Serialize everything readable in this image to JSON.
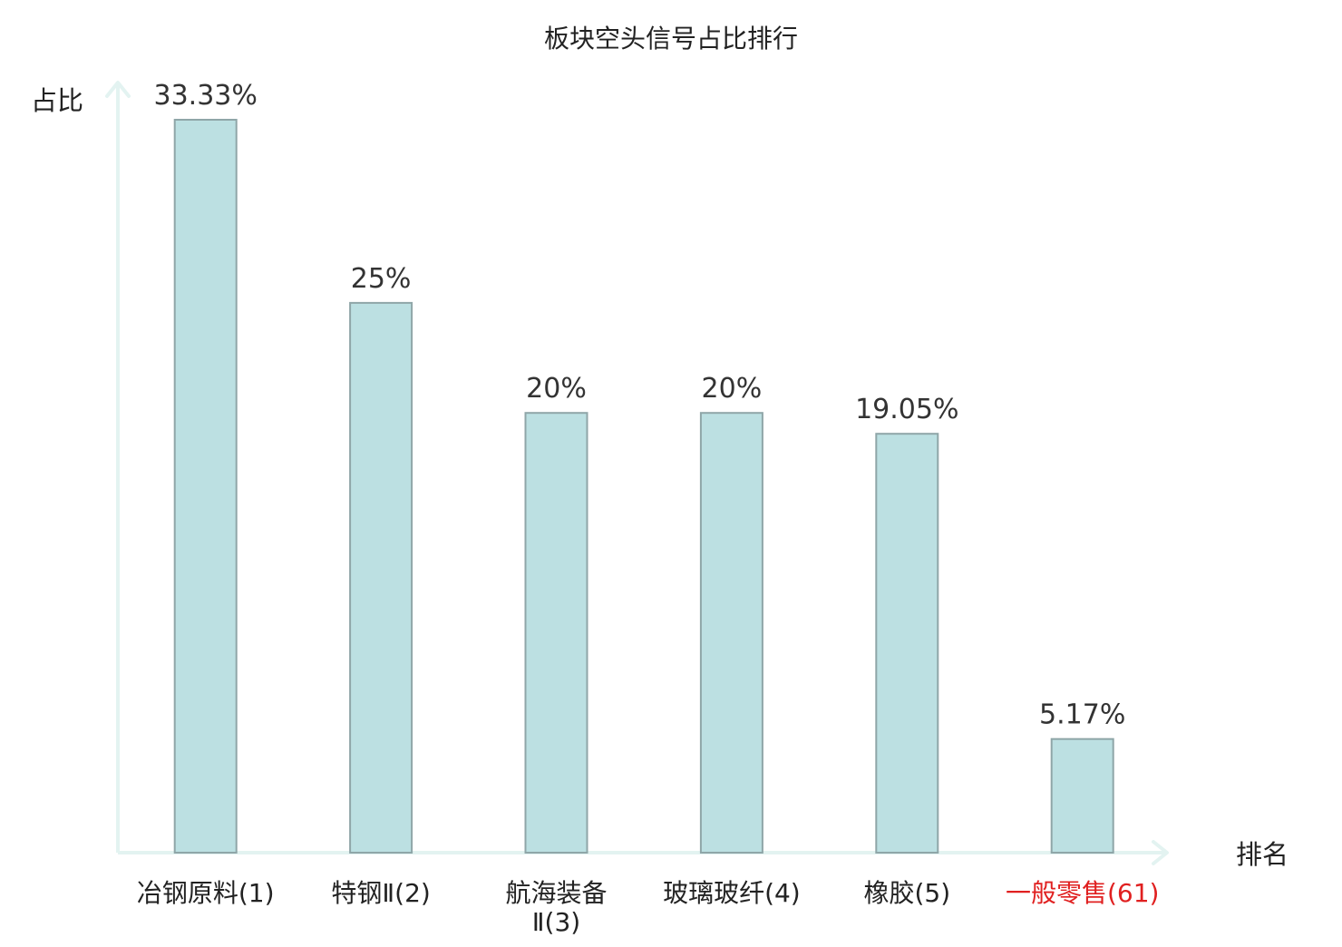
{
  "chart_data": {
    "type": "bar",
    "title": "板块空头信号占比排行",
    "ylabel": "占比",
    "xlabel": "排名",
    "ylim": [
      0,
      35
    ],
    "grid": false,
    "categories": [
      {
        "name": "冶钢原料",
        "rank": "(1)",
        "lines": [
          "冶钢原料(1)"
        ],
        "highlight": false
      },
      {
        "name": "特钢Ⅱ",
        "rank": "(2)",
        "lines": [
          "特钢Ⅱ(2)"
        ],
        "highlight": false
      },
      {
        "name": "航海装备Ⅱ",
        "rank": "(3)",
        "lines": [
          "航海装备",
          "Ⅱ(3)"
        ],
        "highlight": false
      },
      {
        "name": "玻璃玻纤",
        "rank": "(4)",
        "lines": [
          "玻璃玻纤(4)"
        ],
        "highlight": false
      },
      {
        "name": "橡胶",
        "rank": "(5)",
        "lines": [
          "橡胶(5)"
        ],
        "highlight": false
      },
      {
        "name": "一般零售",
        "rank": "(61)",
        "lines": [
          "一般零售(61)"
        ],
        "highlight": true
      }
    ],
    "values": [
      33.33,
      25,
      20,
      20,
      19.05,
      5.17
    ],
    "value_labels": [
      "33.33%",
      "25%",
      "20%",
      "20%",
      "19.05%",
      "5.17%"
    ]
  },
  "colors": {
    "bar_fill": "#bce0e2",
    "bar_stroke": "#8fa6a8",
    "axis": "#e3f3f1",
    "text": "#333333",
    "title_text": "#222222",
    "highlight": "#e02020"
  }
}
